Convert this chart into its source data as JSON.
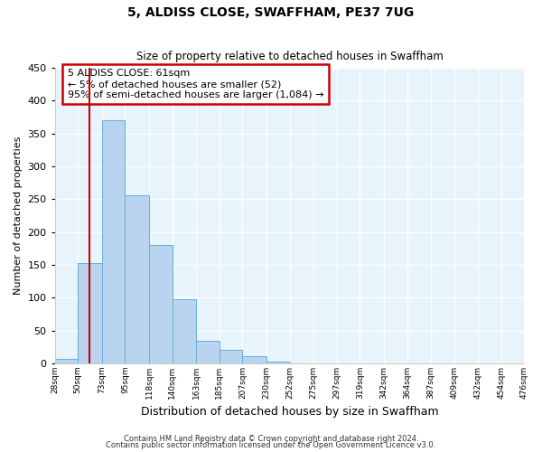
{
  "title": "5, ALDISS CLOSE, SWAFFHAM, PE37 7UG",
  "subtitle": "Size of property relative to detached houses in Swaffham",
  "xlabel": "Distribution of detached houses by size in Swaffham",
  "ylabel": "Number of detached properties",
  "bin_labels": [
    "28sqm",
    "50sqm",
    "73sqm",
    "95sqm",
    "118sqm",
    "140sqm",
    "163sqm",
    "185sqm",
    "207sqm",
    "230sqm",
    "252sqm",
    "275sqm",
    "297sqm",
    "319sqm",
    "342sqm",
    "364sqm",
    "387sqm",
    "409sqm",
    "432sqm",
    "454sqm",
    "476sqm"
  ],
  "bar_values": [
    7,
    152,
    370,
    256,
    180,
    97,
    34,
    21,
    11,
    3,
    0,
    0,
    0,
    0,
    0,
    0,
    0,
    0,
    0,
    0
  ],
  "bar_color": "#b8d4ee",
  "bar_edge_color": "#6aaed6",
  "bin_edges": [
    28,
    50,
    73,
    95,
    118,
    140,
    163,
    185,
    207,
    230,
    252,
    275,
    297,
    319,
    342,
    364,
    387,
    409,
    432,
    454,
    476
  ],
  "property_line_x": 61,
  "property_line_color": "#cc0000",
  "ylim": [
    0,
    450
  ],
  "yticks": [
    0,
    50,
    100,
    150,
    200,
    250,
    300,
    350,
    400,
    450
  ],
  "annotation_box_text": "5 ALDISS CLOSE: 61sqm\n← 5% of detached houses are smaller (52)\n95% of semi-detached houses are larger (1,084) →",
  "annotation_box_color": "#ffffff",
  "annotation_box_edge_color": "#cc0000",
  "bg_color": "#e8f4fb",
  "footer_line1": "Contains HM Land Registry data © Crown copyright and database right 2024.",
  "footer_line2": "Contains public sector information licensed under the Open Government Licence v3.0."
}
